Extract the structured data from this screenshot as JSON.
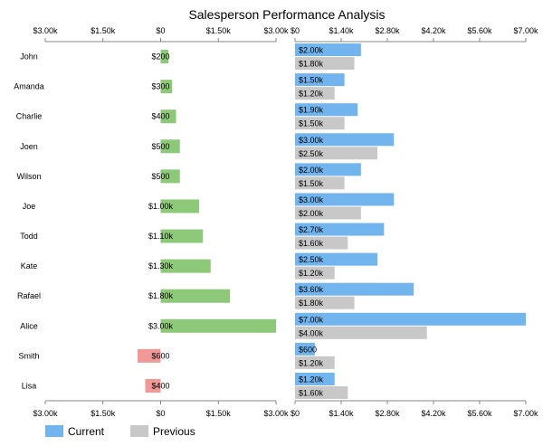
{
  "chart_data": {
    "type": "bar",
    "title": "Salesperson Performance Analysis",
    "categories": [
      "John",
      "Amanda",
      "Charlie",
      "Joen",
      "Wilson",
      "Joe",
      "Todd",
      "Kate",
      "Rafael",
      "Alice",
      "Smith",
      "Lisa"
    ],
    "left_panel": {
      "values": [
        200,
        300,
        400,
        500,
        500,
        1000,
        1100,
        1300,
        1800,
        3000,
        -600,
        -400
      ],
      "value_labels": [
        "$200",
        "$300",
        "$400",
        "$500",
        "$500",
        "$1.00k",
        "$1.10k",
        "$1.30k",
        "$1.80k",
        "$3.00k",
        "$600",
        "$400"
      ],
      "xlim": [
        -3000,
        3000
      ],
      "ticks": [
        -3000,
        -1500,
        0,
        1500,
        3000
      ],
      "tick_labels": [
        "$3.00k",
        "$1.50k",
        "$0",
        "$1.50k",
        "$3.00k"
      ],
      "positive_color": "#8ec97a",
      "negative_color": "#f19898"
    },
    "right_panel": {
      "xlim": [
        0,
        7000
      ],
      "ticks": [
        0,
        1400,
        2800,
        4200,
        5600,
        7000
      ],
      "tick_labels": [
        "$0",
        "$1.40k",
        "$2.80k",
        "$4.20k",
        "$5.60k",
        "$7.00k"
      ],
      "series": [
        {
          "name": "Current",
          "color": "#72b4ee",
          "values": [
            2000,
            1500,
            1900,
            3000,
            2000,
            3000,
            2700,
            2500,
            3600,
            7000,
            600,
            1200
          ],
          "value_labels": [
            "$2.00k",
            "$1.50k",
            "$1.90k",
            "$3.00k",
            "$2.00k",
            "$3.00k",
            "$2.70k",
            "$2.50k",
            "$3.60k",
            "$7.00k",
            "$600",
            "$1.20k"
          ]
        },
        {
          "name": "Previous",
          "color": "#c8c8c8",
          "values": [
            1800,
            1200,
            1500,
            2500,
            1500,
            2000,
            1600,
            1200,
            1800,
            4000,
            1200,
            1600
          ],
          "value_labels": [
            "$1.80k",
            "$1.20k",
            "$1.50k",
            "$2.50k",
            "$1.50k",
            "$2.00k",
            "$1.60k",
            "$1.20k",
            "$1.80k",
            "$4.00k",
            "$1.20k",
            "$1.60k"
          ]
        }
      ]
    },
    "grid": false,
    "legend_position": "bottom-left"
  }
}
